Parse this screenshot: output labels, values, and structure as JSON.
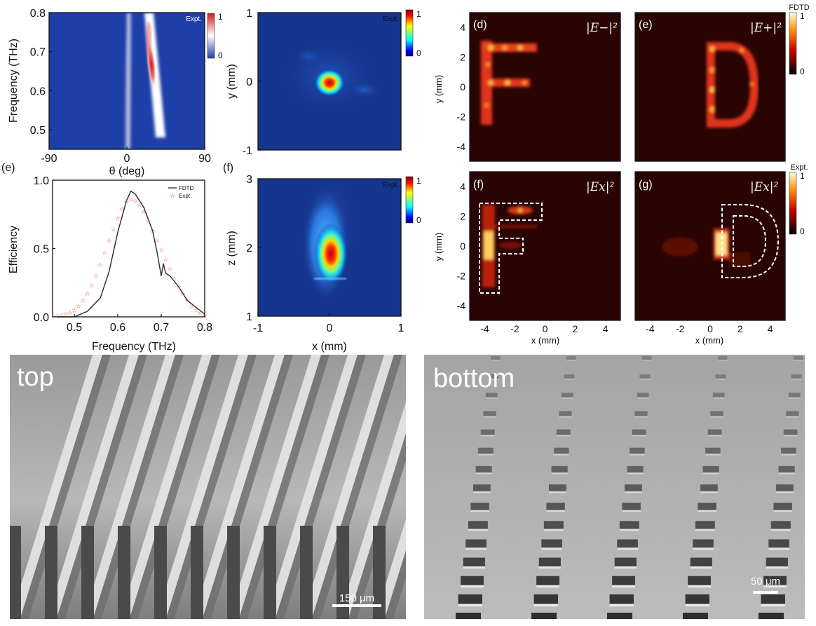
{
  "colors": {
    "jet_bg": "#16358f",
    "hot_bg": "#2a0303",
    "sem_dark": "#4a4a4a",
    "sem_light": "#c9c9c9",
    "expt_marker": "#e0403c",
    "fdtd_line": "#2a2a2a"
  },
  "chart_data": [
    {
      "type": "heatmap",
      "id": "dispersion-map",
      "colormap": "blue-white-red",
      "xlabel": "θ (deg)",
      "ylabel": "Frequency (THz)",
      "xlim": [
        -90,
        90
      ],
      "ylim": [
        0.45,
        0.8
      ],
      "x_ticks": [
        "-90",
        "0",
        "90"
      ],
      "y_ticks": [
        "0.5",
        "0.6",
        "0.7",
        "0.8"
      ],
      "tag": "Expt.",
      "colorbar_ticks": [
        "1",
        "0"
      ]
    },
    {
      "type": "heatmap",
      "id": "focal-xy",
      "colormap": "jet",
      "ylabel": "y (mm)",
      "ylim": [
        -1,
        1
      ],
      "y_ticks": [
        "1",
        "0",
        "-1"
      ],
      "tag": "Expt.",
      "colorbar_ticks": [
        "1",
        "0"
      ]
    },
    {
      "type": "line",
      "id": "efficiency",
      "panel_label": "(e)",
      "xlabel": "Frequency (THz)",
      "ylabel": "Efficiency",
      "xlim": [
        0.45,
        0.8
      ],
      "ylim": [
        0,
        1
      ],
      "x_ticks": [
        "0.5",
        "0.6",
        "0.7",
        "0.8"
      ],
      "y_ticks": [
        "0.0",
        "0.5",
        "1.0"
      ],
      "legend": [
        "FDTD",
        "Expt."
      ],
      "legend_position": "top-right",
      "series": [
        {
          "name": "FDTD",
          "style": "line",
          "x": [
            0.46,
            0.5,
            0.53,
            0.56,
            0.58,
            0.6,
            0.62,
            0.63,
            0.64,
            0.66,
            0.68,
            0.69,
            0.7,
            0.705,
            0.71,
            0.72,
            0.74,
            0.76,
            0.78,
            0.8
          ],
          "y": [
            0.0,
            0.0,
            0.04,
            0.14,
            0.33,
            0.62,
            0.85,
            0.92,
            0.9,
            0.8,
            0.63,
            0.48,
            0.3,
            0.39,
            0.32,
            0.3,
            0.22,
            0.12,
            0.07,
            0.02
          ]
        },
        {
          "name": "Expt.",
          "style": "markers",
          "marker": "star",
          "x": [
            0.46,
            0.47,
            0.48,
            0.49,
            0.5,
            0.51,
            0.52,
            0.53,
            0.54,
            0.55,
            0.56,
            0.57,
            0.58,
            0.59,
            0.6,
            0.61,
            0.62,
            0.63,
            0.64,
            0.65,
            0.66,
            0.67,
            0.68,
            0.69,
            0.7,
            0.71,
            0.72,
            0.73,
            0.74,
            0.75,
            0.76,
            0.77,
            0.78,
            0.79,
            0.8
          ],
          "y": [
            0.01,
            0.01,
            0.02,
            0.03,
            0.05,
            0.08,
            0.12,
            0.17,
            0.23,
            0.3,
            0.38,
            0.47,
            0.56,
            0.64,
            0.72,
            0.79,
            0.84,
            0.86,
            0.85,
            0.82,
            0.77,
            0.7,
            0.63,
            0.56,
            0.49,
            0.42,
            0.35,
            0.28,
            0.22,
            0.17,
            0.12,
            0.08,
            0.05,
            0.03,
            0.01
          ]
        }
      ]
    },
    {
      "type": "heatmap",
      "id": "focal-xz",
      "panel_label": "(f)",
      "colormap": "jet",
      "xlabel": "x (mm)",
      "ylabel": "z (mm)",
      "xlim": [
        -1,
        1
      ],
      "ylim": [
        1,
        3
      ],
      "x_ticks": [
        "-1",
        "0",
        "1"
      ],
      "y_ticks": [
        "3",
        "2",
        "1"
      ],
      "tag": "Expt.",
      "colorbar_ticks": [
        "1",
        "0"
      ]
    },
    {
      "type": "heatmap",
      "id": "hologram-d",
      "panel_label": "(d)",
      "colormap": "hot",
      "title": "|E−|²",
      "ylabel": "y (mm)",
      "y_ticks": [
        "4",
        "2",
        "0",
        "-2",
        "-4"
      ]
    },
    {
      "type": "heatmap",
      "id": "hologram-e",
      "panel_label": "(e)",
      "colormap": "hot",
      "title": "|E+|²",
      "colorbar_title": "FDTD",
      "colorbar_ticks": [
        "1",
        "0"
      ]
    },
    {
      "type": "heatmap",
      "id": "hologram-f",
      "panel_label": "(f)",
      "colormap": "hot",
      "title": "|Ex|²",
      "xlabel": "x (mm)",
      "ylabel": "y (mm)",
      "x_ticks": [
        "-4",
        "-2",
        "0",
        "2",
        "4"
      ],
      "y_ticks": [
        "4",
        "2",
        "0",
        "-2",
        "-4"
      ]
    },
    {
      "type": "heatmap",
      "id": "hologram-g",
      "panel_label": "(g)",
      "colormap": "hot",
      "title": "|Ex|²",
      "xlabel": "x (mm)",
      "x_ticks": [
        "-4",
        "-2",
        "0",
        "2",
        "4"
      ],
      "colorbar_title": "Expt.",
      "colorbar_ticks": [
        "1",
        "0"
      ]
    }
  ],
  "photos": {
    "top": {
      "label": "top",
      "scalebar": "150 μm"
    },
    "bottom": {
      "label": "bottom",
      "scalebar": "50 μm"
    }
  }
}
